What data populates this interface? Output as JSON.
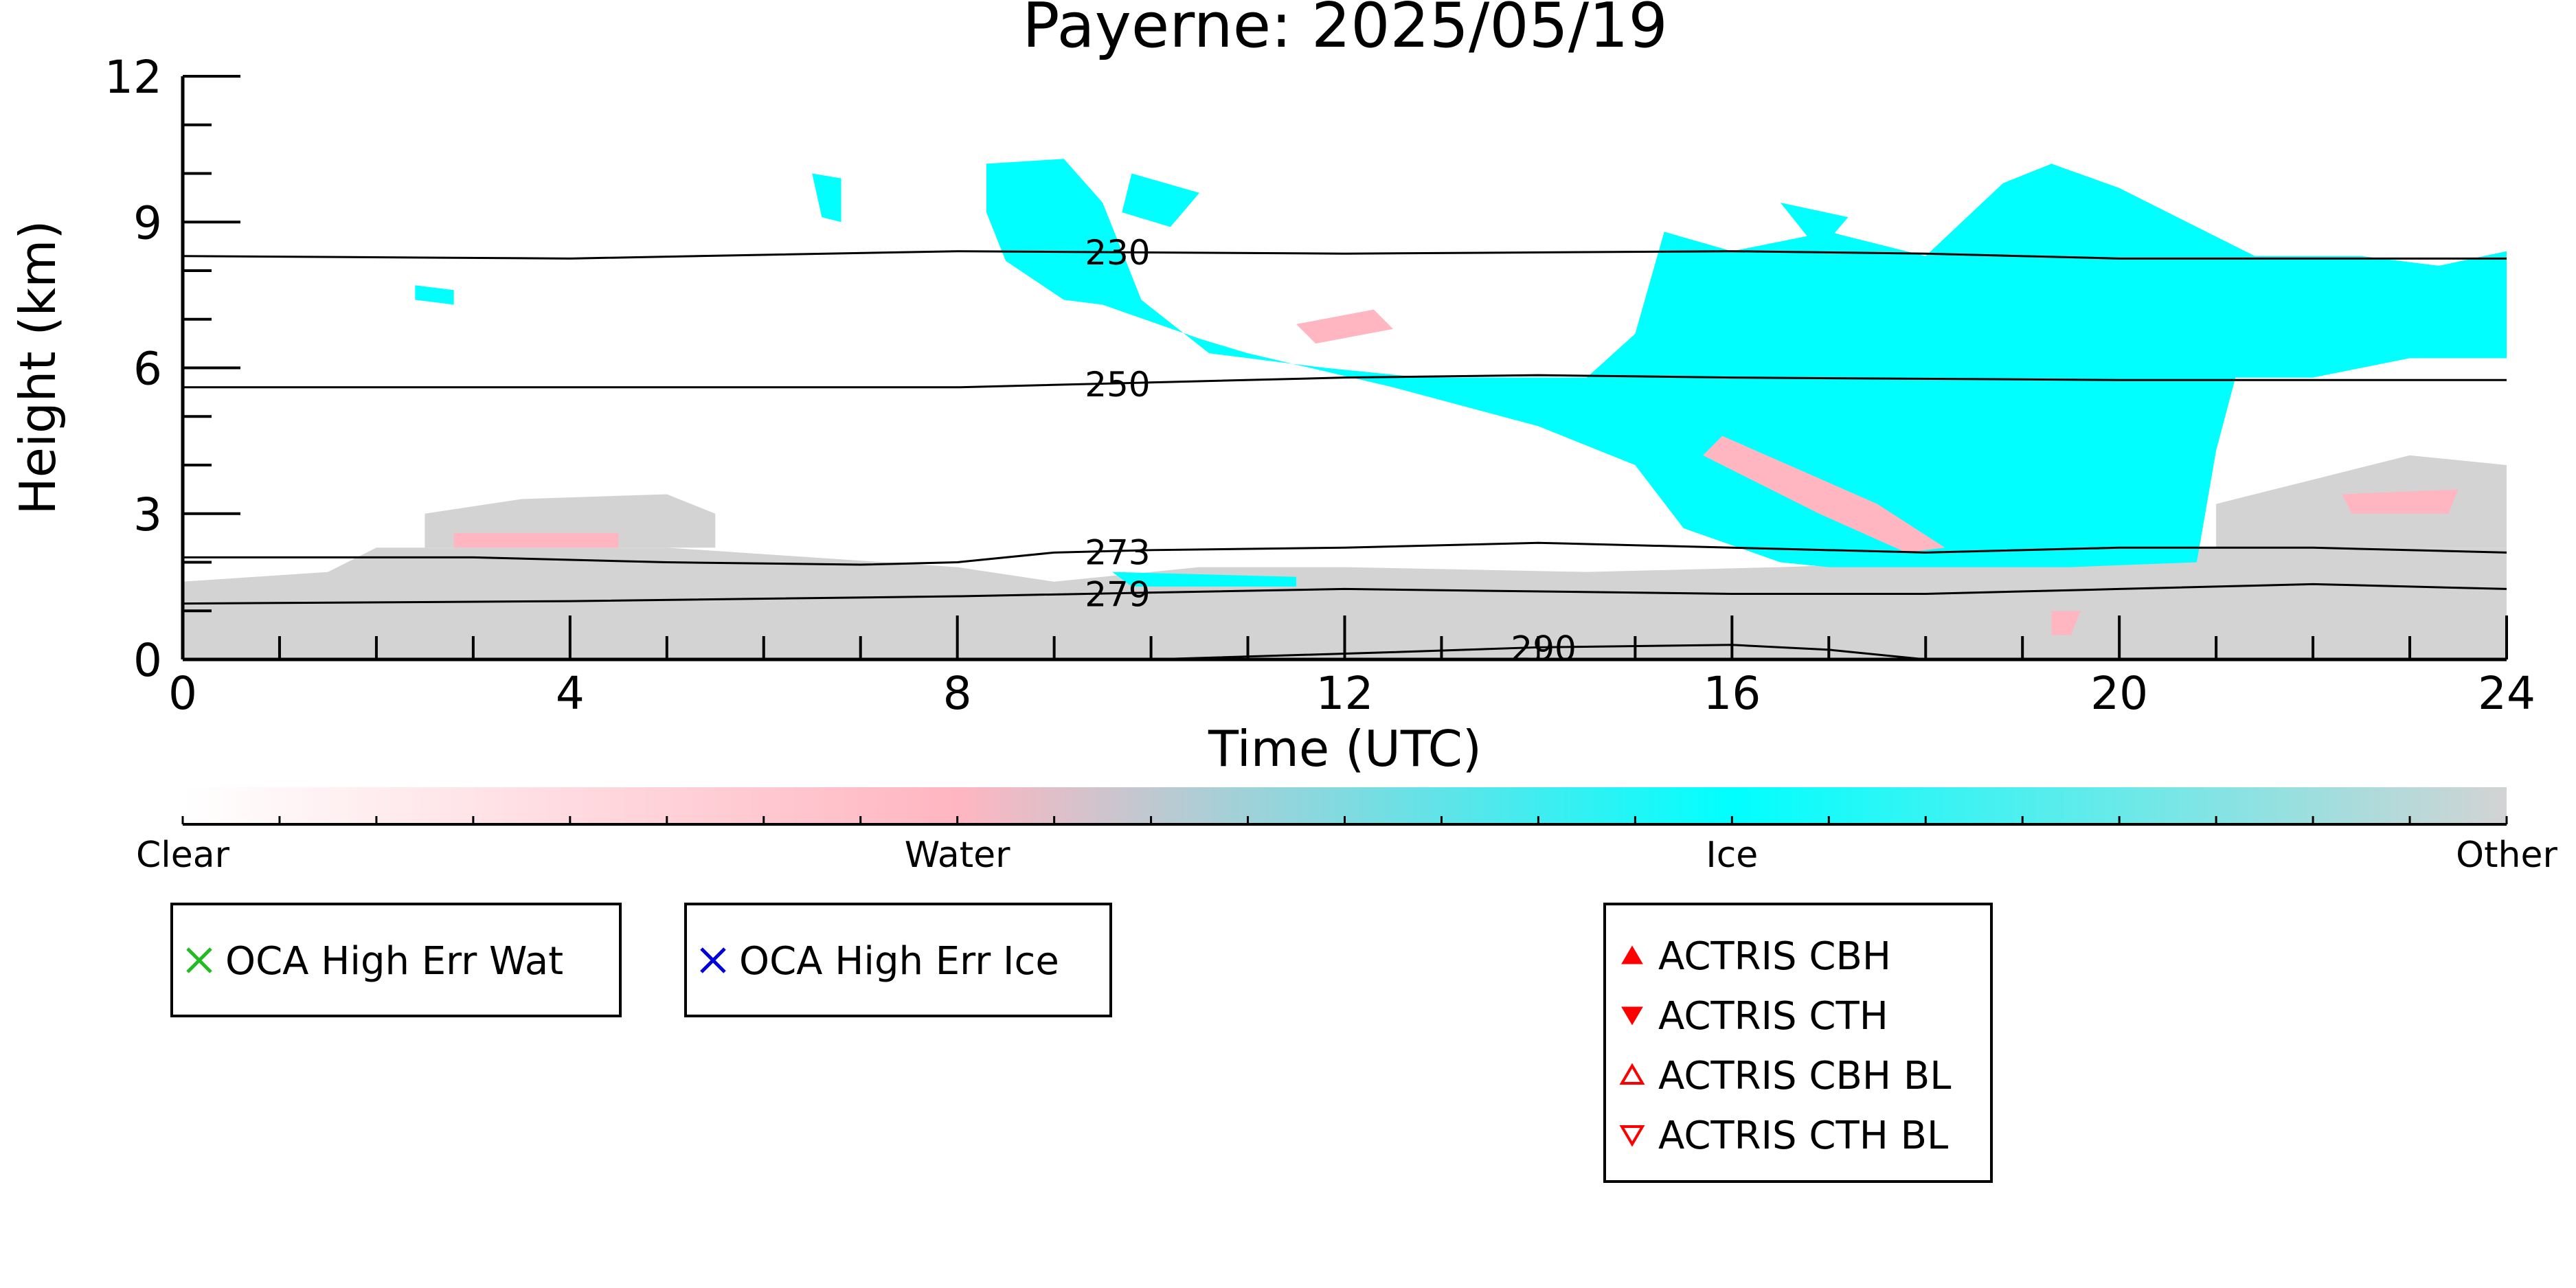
{
  "chart_data": {
    "type": "heatmap",
    "title": "Payerne: 2025/05/19",
    "xlabel": "Time (UTC)",
    "ylabel": "Height (km)",
    "xlim": [
      0,
      24
    ],
    "ylim": [
      0,
      12
    ],
    "x_ticks": [
      "0",
      "4",
      "8",
      "12",
      "16",
      "20",
      "24"
    ],
    "y_ticks": [
      "0",
      "3",
      "6",
      "9",
      "12"
    ],
    "categories": [
      "Clear",
      "Water",
      "Ice",
      "Other"
    ],
    "category_colors": {
      "Clear": "#ffffff",
      "Water": "#ffb6c1",
      "Ice": "#00ffff",
      "Other": "#d3d3d3"
    },
    "regions": [
      {
        "category": "Other",
        "points": [
          [
            0,
            0
          ],
          [
            24,
            0
          ],
          [
            24,
            2.3
          ],
          [
            21,
            2.3
          ],
          [
            20,
            2.2
          ],
          [
            18,
            2.0
          ],
          [
            16.5,
            1.9
          ],
          [
            14.5,
            1.8
          ],
          [
            12,
            1.9
          ],
          [
            10.5,
            1.9
          ],
          [
            9,
            1.6
          ],
          [
            8,
            1.9
          ],
          [
            5,
            2.3
          ],
          [
            2,
            2.3
          ],
          [
            1.5,
            1.8
          ],
          [
            0,
            1.6
          ]
        ]
      },
      {
        "category": "Other",
        "points": [
          [
            2.5,
            2.3
          ],
          [
            5.5,
            2.3
          ],
          [
            5.5,
            3.0
          ],
          [
            5,
            3.4
          ],
          [
            3.5,
            3.3
          ],
          [
            2.5,
            3.0
          ]
        ]
      },
      {
        "category": "Other",
        "points": [
          [
            21,
            2.3
          ],
          [
            24,
            2.3
          ],
          [
            24,
            4.0
          ],
          [
            23,
            4.2
          ],
          [
            22,
            3.7
          ],
          [
            21,
            3.2
          ]
        ]
      },
      {
        "category": "Ice",
        "points": [
          [
            8.3,
            10.2
          ],
          [
            9.1,
            10.3
          ],
          [
            9.5,
            9.4
          ],
          [
            9.9,
            7.4
          ],
          [
            10.6,
            6.3
          ],
          [
            11.8,
            6.0
          ],
          [
            12.8,
            5.8
          ],
          [
            14.5,
            5.8
          ],
          [
            15.0,
            6.7
          ],
          [
            15.3,
            8.8
          ],
          [
            16,
            8.4
          ],
          [
            17,
            8.8
          ],
          [
            18,
            8.3
          ],
          [
            18.8,
            9.8
          ],
          [
            19.3,
            10.2
          ],
          [
            20,
            9.7
          ],
          [
            21.4,
            8.3
          ],
          [
            22.5,
            8.3
          ],
          [
            23.3,
            8.1
          ],
          [
            24,
            8.4
          ],
          [
            24,
            6.2
          ],
          [
            23,
            6.2
          ],
          [
            22,
            5.8
          ],
          [
            21.2,
            5.8
          ],
          [
            21,
            4.3
          ],
          [
            20.8,
            2.0
          ],
          [
            19.5,
            1.9
          ],
          [
            17,
            1.9
          ],
          [
            16.5,
            2.0
          ],
          [
            15.5,
            2.7
          ],
          [
            15,
            4.0
          ],
          [
            14,
            4.8
          ],
          [
            12.5,
            5.6
          ],
          [
            11,
            6.3
          ],
          [
            10.5,
            6.6
          ],
          [
            9.5,
            7.3
          ],
          [
            9.1,
            7.4
          ],
          [
            8.5,
            8.2
          ],
          [
            8.3,
            9.2
          ]
        ]
      },
      {
        "category": "Ice",
        "points": [
          [
            16.5,
            9.4
          ],
          [
            17.2,
            9.1
          ],
          [
            16.9,
            8.4
          ]
        ]
      },
      {
        "category": "Ice",
        "points": [
          [
            6.5,
            10.0
          ],
          [
            6.8,
            9.9
          ],
          [
            6.8,
            9.0
          ],
          [
            6.6,
            9.1
          ]
        ]
      },
      {
        "category": "Ice",
        "points": [
          [
            2.4,
            7.7
          ],
          [
            2.8,
            7.6
          ],
          [
            2.8,
            7.3
          ],
          [
            2.4,
            7.4
          ]
        ]
      },
      {
        "category": "Ice",
        "points": [
          [
            9.8,
            10.0
          ],
          [
            10.5,
            9.6
          ],
          [
            10.2,
            8.9
          ],
          [
            9.7,
            9.2
          ]
        ]
      },
      {
        "category": "Ice",
        "points": [
          [
            9.6,
            1.8
          ],
          [
            11.5,
            1.7
          ],
          [
            11.5,
            1.5
          ],
          [
            9.8,
            1.5
          ]
        ]
      },
      {
        "category": "Water",
        "points": [
          [
            12.3,
            7.2
          ],
          [
            11.5,
            6.9
          ],
          [
            11.7,
            6.5
          ],
          [
            12.5,
            6.8
          ]
        ]
      },
      {
        "category": "Water",
        "points": [
          [
            15.9,
            4.6
          ],
          [
            17.5,
            3.2
          ],
          [
            18.2,
            2.3
          ],
          [
            17.8,
            2.2
          ],
          [
            16.9,
            3.0
          ],
          [
            15.7,
            4.2
          ]
        ]
      },
      {
        "category": "Water",
        "points": [
          [
            2.8,
            2.6
          ],
          [
            4.5,
            2.6
          ],
          [
            4.5,
            2.3
          ],
          [
            2.8,
            2.3
          ]
        ]
      },
      {
        "category": "Water",
        "points": [
          [
            19.3,
            1.0
          ],
          [
            19.6,
            1.0
          ],
          [
            19.5,
            0.5
          ],
          [
            19.3,
            0.5
          ]
        ]
      },
      {
        "category": "Water",
        "points": [
          [
            22.3,
            3.4
          ],
          [
            23.5,
            3.5
          ],
          [
            23.4,
            3.0
          ],
          [
            22.4,
            3.0
          ]
        ]
      }
    ],
    "contours": [
      {
        "label": "230",
        "label_x": 9.3,
        "points": [
          [
            0,
            8.3
          ],
          [
            4,
            8.25
          ],
          [
            8,
            8.4
          ],
          [
            12,
            8.35
          ],
          [
            16,
            8.4
          ],
          [
            18,
            8.35
          ],
          [
            20,
            8.25
          ],
          [
            24,
            8.25
          ]
        ]
      },
      {
        "label": "250",
        "label_x": 9.3,
        "points": [
          [
            0,
            5.6
          ],
          [
            4,
            5.6
          ],
          [
            8,
            5.6
          ],
          [
            12,
            5.8
          ],
          [
            14,
            5.85
          ],
          [
            16,
            5.8
          ],
          [
            20,
            5.75
          ],
          [
            24,
            5.75
          ]
        ]
      },
      {
        "label": "273",
        "label_x": 9.3,
        "points": [
          [
            0,
            2.1
          ],
          [
            3,
            2.1
          ],
          [
            5,
            2.0
          ],
          [
            7,
            1.95
          ],
          [
            8,
            2.0
          ],
          [
            9,
            2.2
          ],
          [
            10,
            2.25
          ],
          [
            12,
            2.3
          ],
          [
            14,
            2.4
          ],
          [
            16,
            2.3
          ],
          [
            18,
            2.2
          ],
          [
            20,
            2.3
          ],
          [
            22,
            2.3
          ],
          [
            24,
            2.2
          ]
        ]
      },
      {
        "label": "279",
        "label_x": 9.3,
        "points": [
          [
            0,
            1.15
          ],
          [
            4,
            1.2
          ],
          [
            8,
            1.3
          ],
          [
            12,
            1.45
          ],
          [
            16,
            1.35
          ],
          [
            18,
            1.35
          ],
          [
            20,
            1.45
          ],
          [
            22,
            1.55
          ],
          [
            24,
            1.45
          ]
        ]
      },
      {
        "label": "290",
        "label_x": 13.7,
        "points": [
          [
            10,
            0
          ],
          [
            12.5,
            0.15
          ],
          [
            14,
            0.25
          ],
          [
            16,
            0.3
          ],
          [
            17,
            0.2
          ],
          [
            18,
            0
          ],
          [
            24,
            0
          ]
        ]
      }
    ],
    "colorbar": {
      "labels": [
        "Clear",
        "Water",
        "Ice",
        "Other"
      ]
    },
    "legends": [
      {
        "entries": [
          {
            "label": "OCA High Err Wat",
            "marker": "x",
            "color": "#22bb22"
          }
        ]
      },
      {
        "entries": [
          {
            "label": "OCA High Err Ice",
            "marker": "x",
            "color": "#0000dd"
          }
        ]
      },
      {
        "entries": [
          {
            "label": "ACTRIS CBH",
            "marker": "triangle-up-filled",
            "color": "#ff0000"
          },
          {
            "label": "ACTRIS CTH",
            "marker": "triangle-down-filled",
            "color": "#ff0000"
          },
          {
            "label": "ACTRIS CBH BL",
            "marker": "triangle-up-open",
            "color": "#ff0000"
          },
          {
            "label": "ACTRIS CTH BL",
            "marker": "triangle-down-open",
            "color": "#ff0000"
          }
        ]
      }
    ]
  }
}
